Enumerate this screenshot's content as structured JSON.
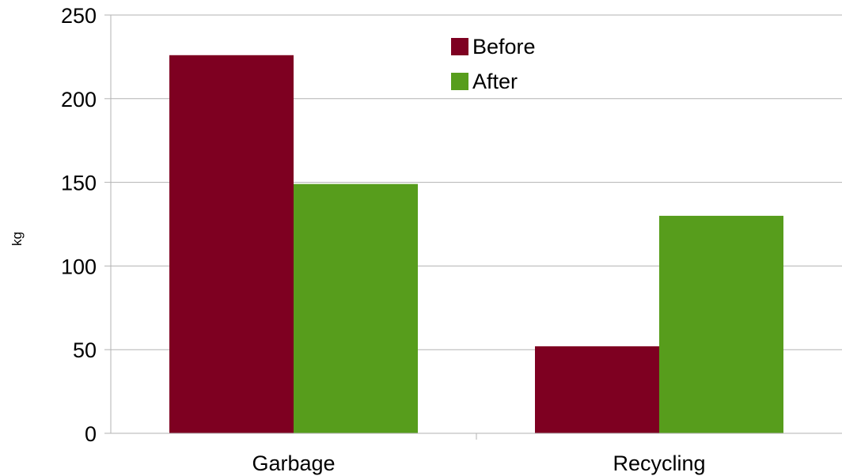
{
  "chart_data": {
    "type": "bar",
    "categories": [
      "Garbage",
      "Recycling"
    ],
    "series": [
      {
        "name": "Before",
        "color": "#7e0021",
        "values": [
          226,
          52
        ]
      },
      {
        "name": "After",
        "color": "#579d1c",
        "values": [
          149,
          130
        ]
      }
    ],
    "xlabel": "",
    "ylabel": "kg",
    "ylim": [
      0,
      250
    ],
    "yticks": [
      0,
      50,
      100,
      150,
      200,
      250
    ],
    "grid": true,
    "legend_position": "top-center"
  }
}
